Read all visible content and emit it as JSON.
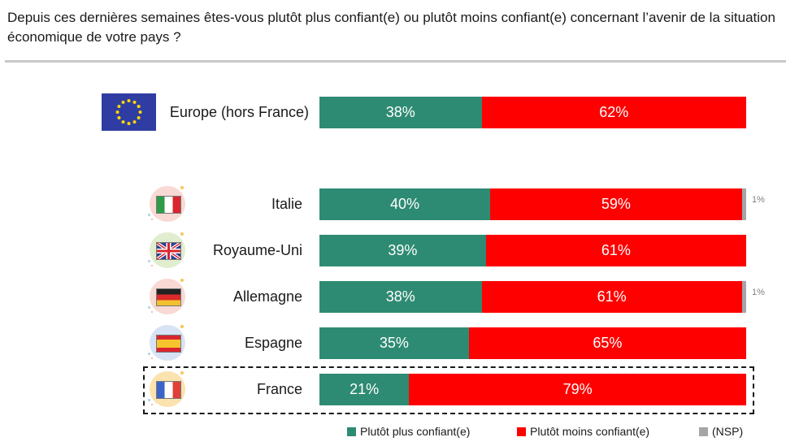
{
  "question": "Depuis ces dernières semaines êtes-vous plutôt plus confiant(e) ou plutôt moins confiant(e) concernant l’avenir de la situation économique de votre pays ?",
  "colors": {
    "plus": "#2e8b73",
    "moins": "#ff0000",
    "nsp": "#a5a5a5"
  },
  "chart_data": {
    "type": "bar",
    "orientation": "horizontal",
    "stacked": true,
    "categories": [
      "Europe (hors France)",
      "Italie",
      "Royaume-Uni",
      "Allemagne",
      "Espagne",
      "France"
    ],
    "series": [
      {
        "name": "Plutôt plus confiant(e)",
        "values": [
          38,
          40,
          39,
          38,
          35,
          21
        ],
        "labels": [
          "38%",
          "40%",
          "39%",
          "38%",
          "35%",
          "21%"
        ]
      },
      {
        "name": "Plutôt moins confiant(e)",
        "values": [
          62,
          59,
          61,
          61,
          65,
          79
        ],
        "labels": [
          "62%",
          "59%",
          "61%",
          "61%",
          "65%",
          "79%"
        ]
      },
      {
        "name": "(NSP)",
        "values": [
          0,
          1,
          0,
          1,
          0,
          0
        ],
        "labels": [
          "",
          "1%",
          "",
          "1%",
          "",
          ""
        ]
      }
    ],
    "flags": [
      "eu-flag-icon",
      "italy-flag-icon",
      "uk-flag-icon",
      "germany-flag-icon",
      "spain-flag-icon",
      "france-flag-icon"
    ],
    "highlighted": "France",
    "legend_position": "bottom-right"
  }
}
